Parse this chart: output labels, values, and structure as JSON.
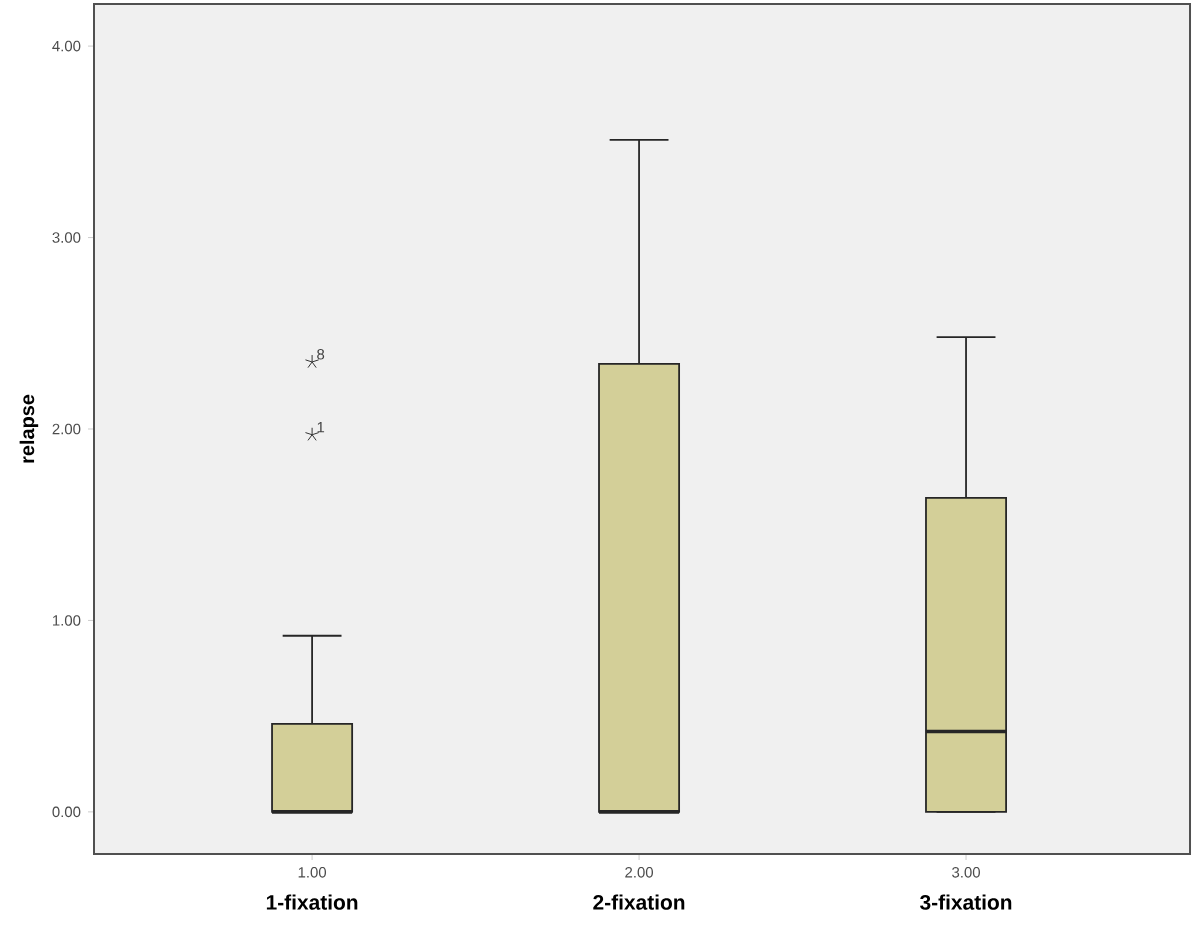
{
  "chart_data": {
    "type": "box",
    "ylabel": "relapse",
    "categories": [
      "1.00",
      "2.00",
      "3.00"
    ],
    "boxes": [
      {
        "low": 0,
        "q1": 0,
        "median": 0,
        "q3": 0.46,
        "high": 0.92,
        "outliers": [
          2.35,
          1.97
        ]
      },
      {
        "low": 0,
        "q1": 0,
        "median": 0,
        "q3": 2.34,
        "high": 3.51
      },
      {
        "low": 0,
        "q1": 0,
        "median": 0.42,
        "q3": 1.64,
        "high": 2.48
      }
    ],
    "color": "#d3cf98",
    "ylim": [
      -0.22,
      4.22
    ],
    "yticks": [
      {
        "value": 0,
        "label": "0.00"
      },
      {
        "value": 1,
        "label": "1.00"
      },
      {
        "value": 2,
        "label": "2.00"
      },
      {
        "value": 3,
        "label": "3.00"
      },
      {
        "value": 4,
        "label": "4.00"
      }
    ],
    "marker": "star",
    "annotations": [
      "8",
      "1",
      "1-fixation",
      "2-fixation",
      "3-fixation"
    ]
  }
}
